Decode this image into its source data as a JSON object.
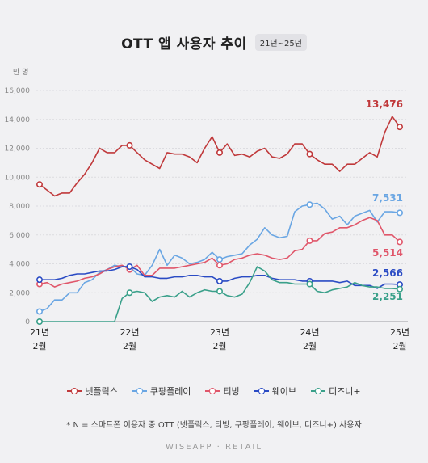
{
  "title": "OTT 앱 사용자 추이",
  "period_badge": "21년~25년",
  "footnote": "* N = 스마트폰 이용자 중 OTT (넷플릭스, 티빙, 쿠팡플레이, 웨이브, 디즈니+) 사용자",
  "brand": "WISEAPP · RETAIL",
  "chart_data": {
    "type": "line",
    "ylabel": "만 명",
    "ylim": [
      0,
      16000
    ],
    "yticks": [
      "0",
      "2,000",
      "4,000",
      "6,000",
      "8,000",
      "10,000",
      "12,000",
      "14,000",
      "16,000"
    ],
    "xticks": [
      {
        "year": "21년",
        "month": "2월",
        "index": 0
      },
      {
        "year": "22년",
        "month": "2월",
        "index": 12
      },
      {
        "year": "23년",
        "month": "2월",
        "index": 24
      },
      {
        "year": "24년",
        "month": "2월",
        "index": 36
      },
      {
        "year": "25년",
        "month": "2월",
        "index": 48
      }
    ],
    "grid": true,
    "legend_position": "bottom",
    "series": [
      {
        "name": "넷플릭스",
        "color": "#c0393b",
        "end_label": "13,476",
        "values": [
          9500,
          9100,
          8700,
          8900,
          8900,
          9600,
          10200,
          11000,
          12000,
          11700,
          11700,
          12200,
          12200,
          11700,
          11200,
          10900,
          10600,
          11700,
          11600,
          11600,
          11400,
          11000,
          12000,
          12800,
          11700,
          12300,
          11500,
          11600,
          11400,
          11800,
          12000,
          11400,
          11300,
          11600,
          12300,
          12300,
          11600,
          11200,
          10900,
          10900,
          10400,
          10900,
          10900,
          11300,
          11700,
          11400,
          13100,
          14200,
          13476
        ]
      },
      {
        "name": "쿠팡플레이",
        "color": "#6aa6e3",
        "end_label": "7,531",
        "values": [
          700,
          900,
          1500,
          1500,
          2000,
          2000,
          2700,
          2900,
          3400,
          3600,
          3900,
          3800,
          3800,
          3300,
          3200,
          3900,
          5000,
          3900,
          4600,
          4400,
          4000,
          4100,
          4300,
          4800,
          4300,
          4500,
          4600,
          4700,
          5300,
          5700,
          6500,
          6000,
          5800,
          5900,
          7600,
          8000,
          8100,
          8200,
          7800,
          7100,
          7300,
          6700,
          7300,
          7500,
          7700,
          6900,
          7600,
          7600,
          7531
        ]
      },
      {
        "name": "티빙",
        "color": "#e0566a",
        "end_label": "5,514",
        "values": [
          2600,
          2700,
          2400,
          2600,
          2700,
          2800,
          3000,
          3100,
          3300,
          3600,
          3800,
          3900,
          3600,
          3900,
          3200,
          3200,
          3700,
          3700,
          3700,
          3800,
          3900,
          4000,
          4100,
          4400,
          3900,
          4000,
          4300,
          4400,
          4600,
          4700,
          4600,
          4400,
          4300,
          4400,
          4900,
          5000,
          5600,
          5600,
          6100,
          6200,
          6500,
          6500,
          6700,
          7000,
          7200,
          7000,
          6000,
          6000,
          5514
        ]
      },
      {
        "name": "웨이브",
        "color": "#2a4bc4",
        "end_label": "2,566",
        "values": [
          2900,
          2900,
          2900,
          3000,
          3200,
          3300,
          3300,
          3400,
          3500,
          3500,
          3600,
          3800,
          3800,
          3600,
          3100,
          3100,
          3000,
          3000,
          3100,
          3100,
          3200,
          3200,
          3100,
          3100,
          2800,
          2800,
          3000,
          3100,
          3100,
          3200,
          3200,
          3000,
          2900,
          2900,
          2900,
          2800,
          2800,
          2800,
          2800,
          2800,
          2700,
          2800,
          2500,
          2500,
          2500,
          2300,
          2600,
          2600,
          2566
        ]
      },
      {
        "name": "디즈니+",
        "color": "#3aa08a",
        "end_label": "2,251",
        "values": [
          0,
          0,
          0,
          0,
          0,
          0,
          0,
          0,
          0,
          0,
          0,
          1600,
          2000,
          2100,
          2000,
          1400,
          1700,
          1800,
          1700,
          2100,
          1700,
          2000,
          2200,
          2100,
          2100,
          1800,
          1700,
          1900,
          2700,
          3800,
          3500,
          2900,
          2700,
          2700,
          2600,
          2600,
          2600,
          2100,
          2000,
          2200,
          2300,
          2400,
          2700,
          2500,
          2400,
          2400,
          2300,
          2300,
          2251
        ]
      }
    ]
  }
}
